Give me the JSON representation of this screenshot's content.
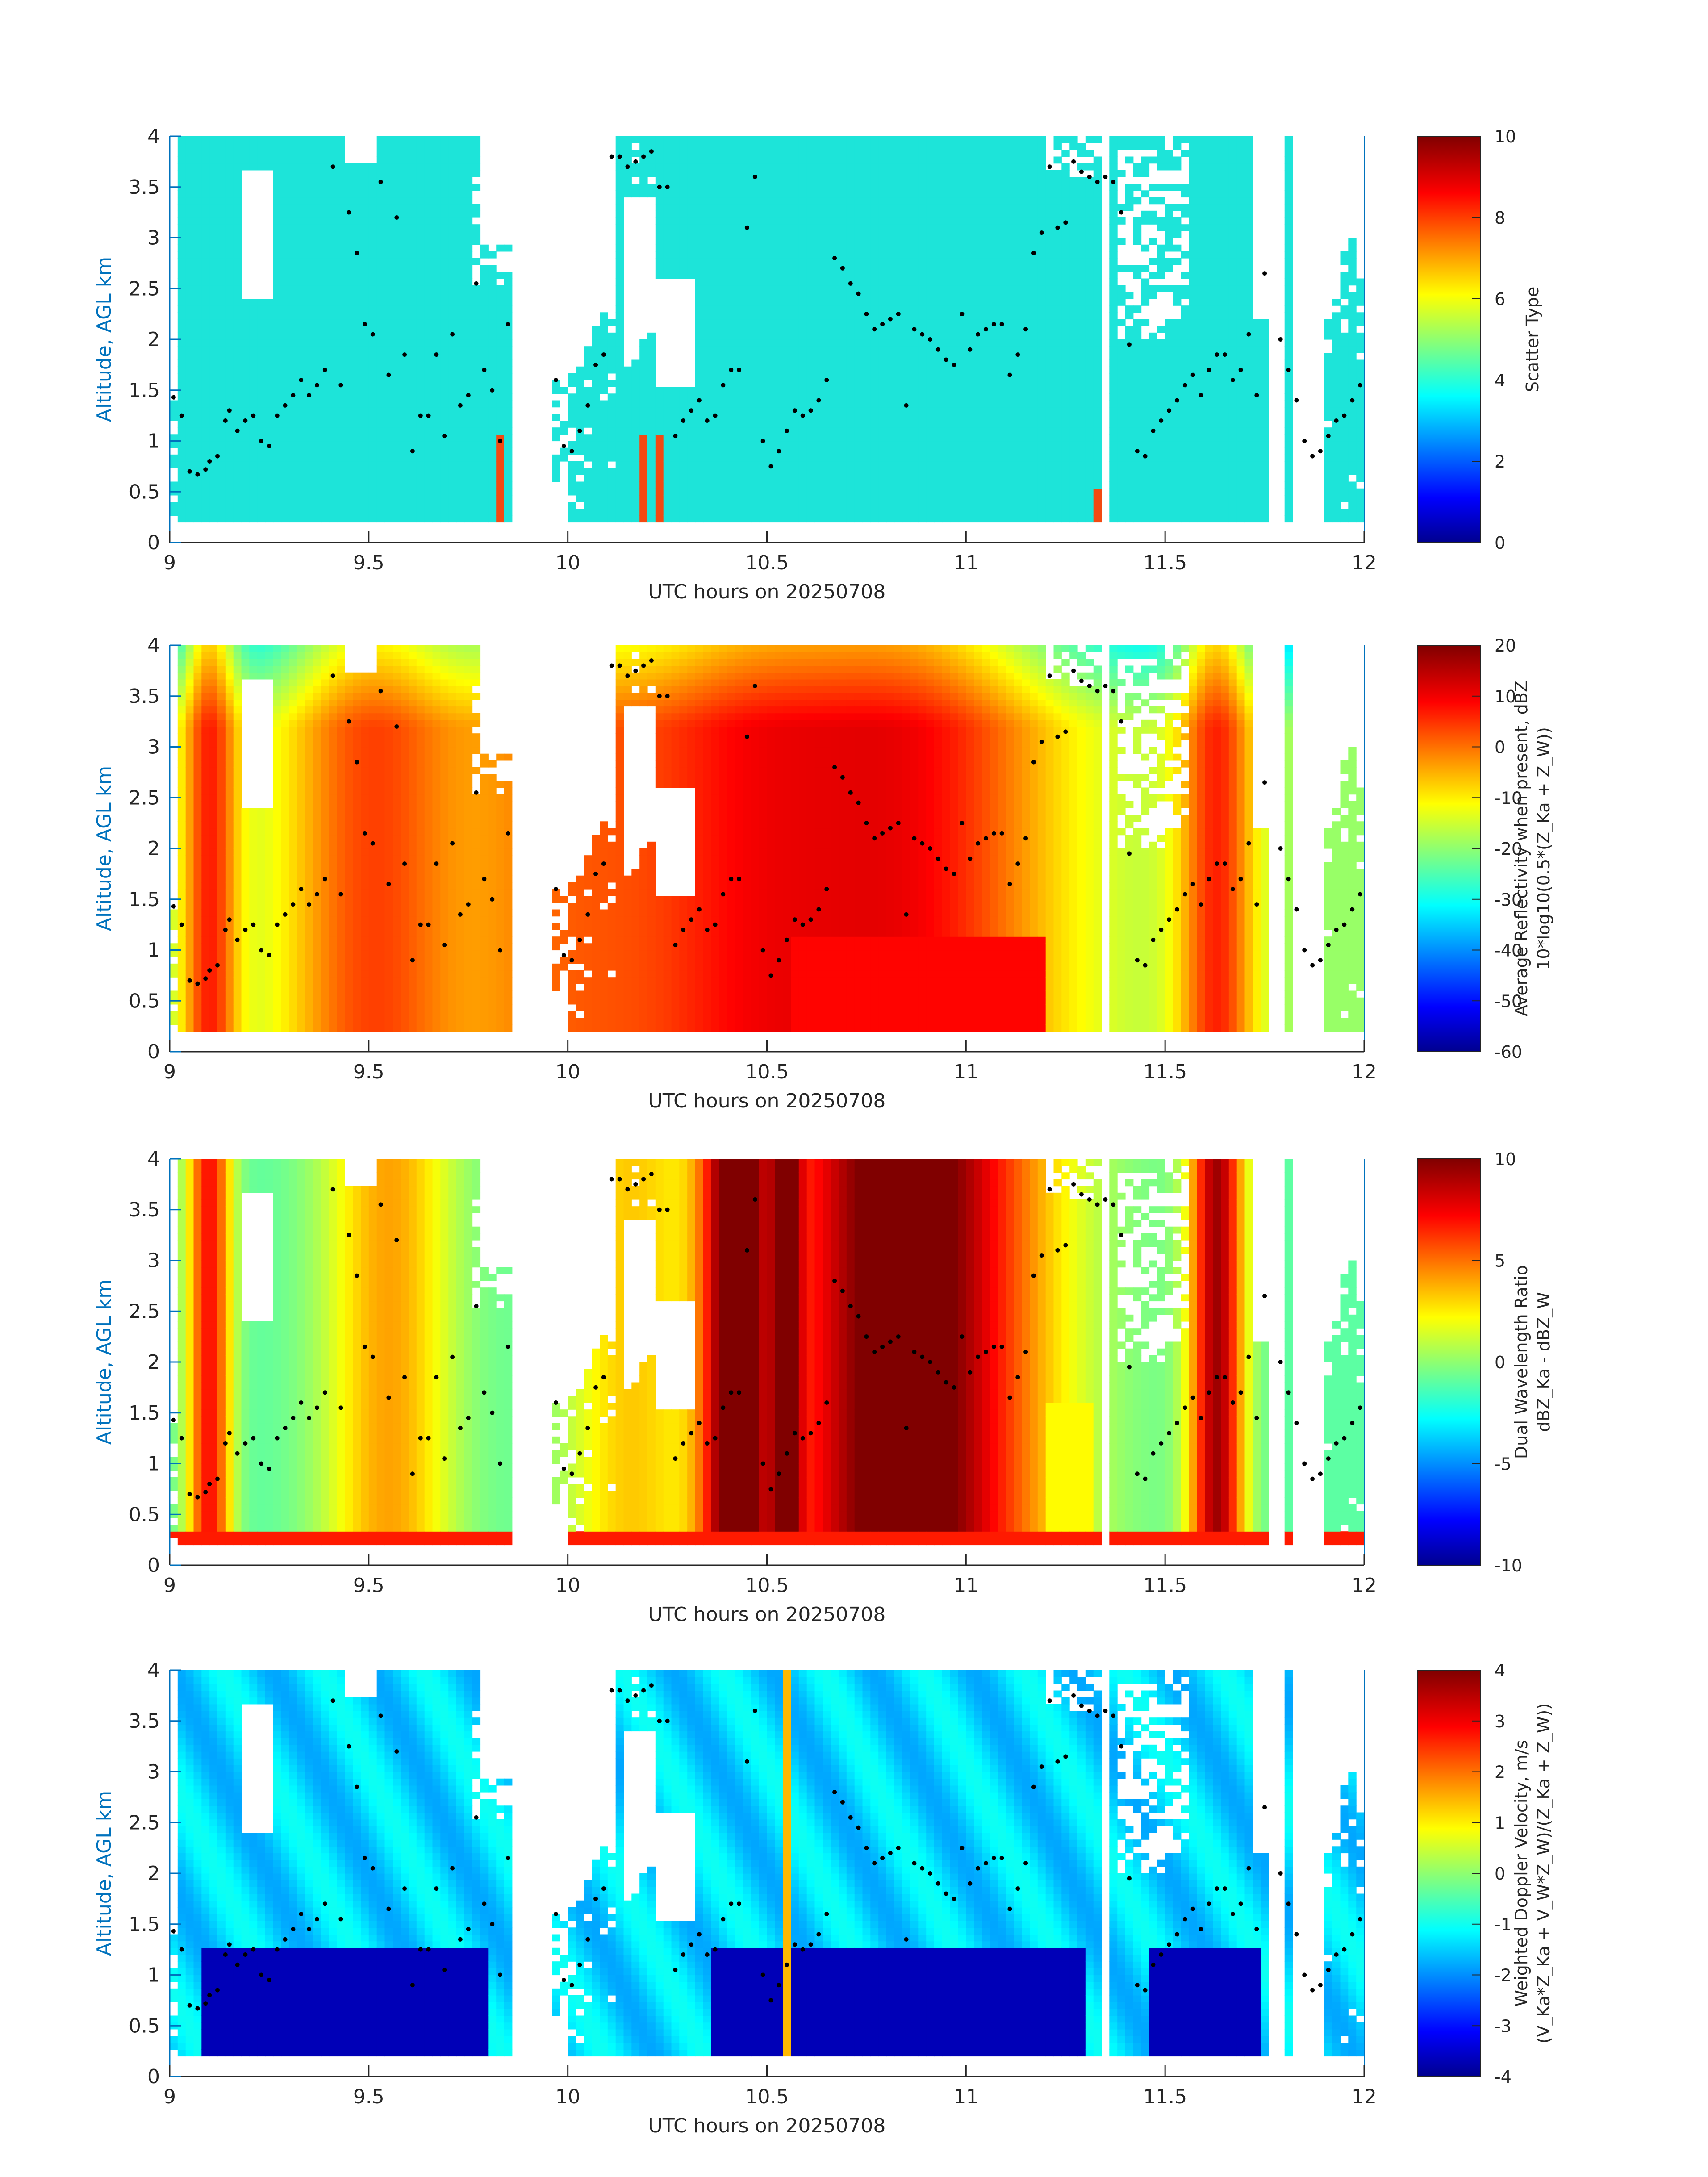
{
  "figure": {
    "xlabel": "UTC hours on 20250708",
    "ylabel": "Altitude, AGL km"
  },
  "chart_data": [
    {
      "type": "heatmap",
      "title": "",
      "xlabel": "UTC hours on 20250708",
      "ylabel": "Altitude, AGL km",
      "xlim": [
        9,
        12
      ],
      "ylim": [
        0,
        4
      ],
      "xticks": [
        "9",
        "9.5",
        "10",
        "10.5",
        "11",
        "11.5",
        "12"
      ],
      "yticks": [
        "0",
        "0.5",
        "1",
        "1.5",
        "2",
        "2.5",
        "3",
        "3.5",
        "4"
      ],
      "colorbar": {
        "label_lines": [
          "Scatter Type"
        ],
        "clim": [
          0,
          10
        ],
        "ticks": [
          "0",
          "2",
          "4",
          "6",
          "8",
          "10"
        ],
        "colormap": "jet"
      },
      "field": "scatter",
      "dominant_value": 3.8,
      "dominant_color": "#1de4d9",
      "secondary_value": 9,
      "secondary_color": "#f24a12"
    },
    {
      "type": "heatmap",
      "title": "",
      "xlabel": "UTC hours on 20250708",
      "ylabel": "Altitude, AGL km",
      "xlim": [
        9,
        12
      ],
      "ylim": [
        0,
        4
      ],
      "xticks": [
        "9",
        "9.5",
        "10",
        "10.5",
        "11",
        "11.5",
        "12"
      ],
      "yticks": [
        "0",
        "0.5",
        "1",
        "1.5",
        "2",
        "2.5",
        "3",
        "3.5",
        "4"
      ],
      "colorbar": {
        "label_lines": [
          "Average Reflectivity when present, dBZ",
          "10*log10(0.5*(Z_Ka + Z_W))"
        ],
        "clim": [
          -60,
          20
        ],
        "ticks": [
          "-60",
          "-50",
          "-40",
          "-30",
          "-20",
          "-10",
          "0",
          "10",
          "20"
        ],
        "colormap": "jet"
      },
      "field": "reflectivity"
    },
    {
      "type": "heatmap",
      "title": "",
      "xlabel": "UTC hours on 20250708",
      "ylabel": "Altitude, AGL km",
      "xlim": [
        9,
        12
      ],
      "ylim": [
        0,
        4
      ],
      "xticks": [
        "9",
        "9.5",
        "10",
        "10.5",
        "11",
        "11.5",
        "12"
      ],
      "yticks": [
        "0",
        "0.5",
        "1",
        "1.5",
        "2",
        "2.5",
        "3",
        "3.5",
        "4"
      ],
      "colorbar": {
        "label_lines": [
          "Dual Wavelength Ratio",
          "dBZ_Ka - dBZ_W"
        ],
        "clim": [
          -10,
          10
        ],
        "ticks": [
          "-10",
          "-5",
          "0",
          "5",
          "10"
        ],
        "colormap": "jet"
      },
      "field": "dwr"
    },
    {
      "type": "heatmap",
      "title": "",
      "xlabel": "UTC hours on 20250708",
      "ylabel": "Altitude, AGL km",
      "xlim": [
        9,
        12
      ],
      "ylim": [
        0,
        4
      ],
      "xticks": [
        "9",
        "9.5",
        "10",
        "10.5",
        "11",
        "11.5",
        "12"
      ],
      "yticks": [
        "0",
        "0.5",
        "1",
        "1.5",
        "2",
        "2.5",
        "3",
        "3.5",
        "4"
      ],
      "colorbar": {
        "label_lines": [
          "Weighted Doppler Velocity, m/s",
          "(V_Ka*Z_Ka + V_W*Z_W)/(Z_Ka + Z_W))"
        ],
        "clim": [
          -4,
          4
        ],
        "ticks": [
          "-4",
          "-3",
          "-2",
          "-1",
          "0",
          "1",
          "2",
          "3",
          "4"
        ],
        "colormap": "jet"
      },
      "field": "velocity"
    }
  ],
  "overlay_points": {
    "description_hidden": true,
    "color": "#000000",
    "x": [
      9.01,
      9.03,
      9.05,
      9.07,
      9.09,
      9.1,
      9.12,
      9.14,
      9.15,
      9.17,
      9.19,
      9.21,
      9.23,
      9.25,
      9.27,
      9.29,
      9.31,
      9.33,
      9.35,
      9.37,
      9.39,
      9.41,
      9.43,
      9.45,
      9.47,
      9.49,
      9.51,
      9.53,
      9.55,
      9.57,
      9.59,
      9.61,
      9.63,
      9.65,
      9.67,
      9.69,
      9.71,
      9.73,
      9.75,
      9.77,
      9.79,
      9.81,
      9.83,
      9.85,
      9.97,
      9.99,
      10.01,
      10.03,
      10.05,
      10.07,
      10.09,
      10.11,
      10.13,
      10.15,
      10.17,
      10.19,
      10.21,
      10.23,
      10.25,
      10.27,
      10.29,
      10.31,
      10.33,
      10.35,
      10.37,
      10.39,
      10.41,
      10.43,
      10.45,
      10.47,
      10.49,
      10.51,
      10.53,
      10.55,
      10.57,
      10.59,
      10.61,
      10.63,
      10.65,
      10.67,
      10.69,
      10.71,
      10.73,
      10.75,
      10.77,
      10.79,
      10.81,
      10.83,
      10.85,
      10.87,
      10.89,
      10.91,
      10.93,
      10.95,
      10.97,
      10.99,
      11.01,
      11.03,
      11.05,
      11.07,
      11.09,
      11.11,
      11.13,
      11.15,
      11.17,
      11.19,
      11.21,
      11.23,
      11.25,
      11.27,
      11.29,
      11.31,
      11.33,
      11.35,
      11.37,
      11.39,
      11.41,
      11.43,
      11.45,
      11.47,
      11.49,
      11.51,
      11.53,
      11.55,
      11.57,
      11.59,
      11.61,
      11.63,
      11.65,
      11.67,
      11.69,
      11.71,
      11.73,
      11.75,
      11.79,
      11.81,
      11.83,
      11.85,
      11.87,
      11.89,
      11.91,
      11.93,
      11.95,
      11.97,
      11.99
    ],
    "y": [
      1.43,
      1.25,
      0.7,
      0.67,
      0.72,
      0.8,
      0.85,
      1.2,
      1.3,
      1.1,
      1.2,
      1.25,
      1.0,
      0.95,
      1.25,
      1.35,
      1.45,
      1.6,
      1.45,
      1.55,
      1.7,
      3.7,
      1.55,
      3.25,
      2.85,
      2.15,
      2.05,
      3.55,
      1.65,
      3.2,
      1.85,
      0.9,
      1.25,
      1.25,
      1.85,
      1.05,
      2.05,
      1.35,
      1.45,
      2.55,
      1.7,
      1.5,
      1.0,
      2.15,
      1.6,
      0.95,
      0.9,
      1.1,
      1.35,
      1.75,
      1.85,
      3.8,
      3.8,
      3.7,
      3.75,
      3.8,
      3.85,
      3.5,
      3.5,
      1.05,
      1.2,
      1.3,
      1.4,
      1.2,
      1.25,
      1.55,
      1.7,
      1.7,
      3.1,
      3.6,
      1.0,
      0.75,
      0.9,
      1.1,
      1.3,
      1.25,
      1.3,
      1.4,
      1.6,
      2.8,
      2.7,
      2.55,
      2.45,
      2.25,
      2.1,
      2.15,
      2.2,
      2.25,
      1.35,
      2.1,
      2.05,
      2.0,
      1.9,
      1.8,
      1.75,
      2.25,
      1.9,
      2.05,
      2.1,
      2.15,
      2.15,
      1.65,
      1.85,
      2.1,
      2.85,
      3.05,
      3.7,
      3.1,
      3.15,
      3.75,
      3.65,
      3.6,
      3.55,
      3.6,
      3.55,
      3.25,
      1.95,
      0.9,
      0.85,
      1.1,
      1.2,
      1.3,
      1.4,
      1.55,
      1.65,
      1.45,
      1.7,
      1.85,
      1.85,
      1.6,
      1.7,
      2.05,
      1.45,
      2.65,
      2.0,
      1.7,
      1.4,
      1.0,
      0.85,
      0.9,
      1.05,
      1.2,
      1.25,
      1.4,
      1.55
    ]
  }
}
